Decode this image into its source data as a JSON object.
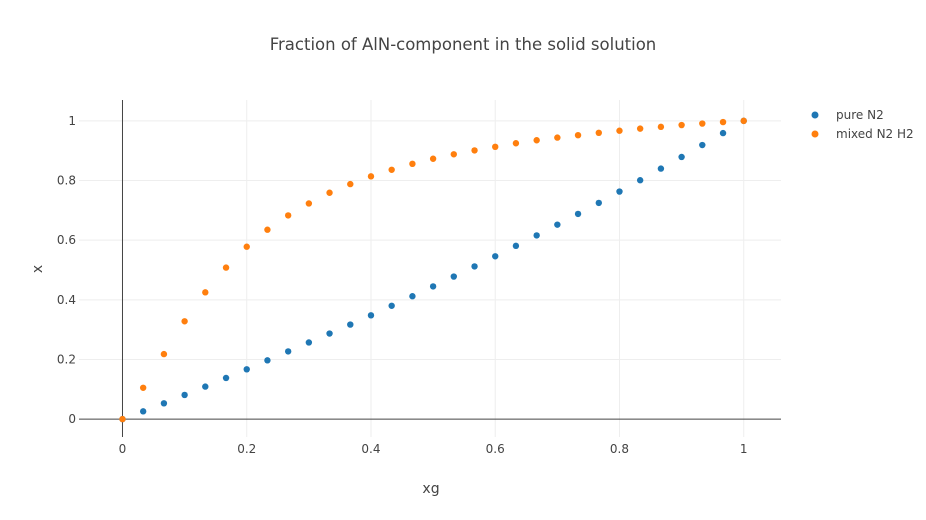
{
  "chart_data": {
    "type": "scatter",
    "title": "Fraction of AlN-component in the solid solution",
    "xlabel": "xg",
    "ylabel": "x",
    "xlim": [
      -0.07,
      1.06
    ],
    "ylim": [
      -0.06,
      1.07
    ],
    "xticks": [
      0,
      0.2,
      0.4,
      0.6,
      0.8,
      1
    ],
    "yticks": [
      0,
      0.2,
      0.4,
      0.6,
      0.8,
      1
    ],
    "xtick_labels": [
      "0",
      "0.2",
      "0.4",
      "0.6",
      "0.8",
      "1"
    ],
    "ytick_labels": [
      "0",
      "0.2",
      "0.4",
      "0.6",
      "0.8",
      "1"
    ],
    "grid": true,
    "legend_position": "top-right",
    "series": [
      {
        "name": "pure N2",
        "color": "#1f77b4",
        "x": [
          0,
          0.0333,
          0.0667,
          0.1,
          0.1333,
          0.1667,
          0.2,
          0.2333,
          0.2667,
          0.3,
          0.3333,
          0.3667,
          0.4,
          0.4333,
          0.4667,
          0.5,
          0.5333,
          0.5667,
          0.6,
          0.6333,
          0.6667,
          0.7,
          0.7333,
          0.7667,
          0.8,
          0.8333,
          0.8667,
          0.9,
          0.9333,
          0.9667,
          1
        ],
        "y": [
          0,
          0.026,
          0.053,
          0.081,
          0.109,
          0.138,
          0.167,
          0.197,
          0.227,
          0.257,
          0.287,
          0.317,
          0.348,
          0.38,
          0.412,
          0.445,
          0.478,
          0.512,
          0.546,
          0.581,
          0.616,
          0.652,
          0.688,
          0.725,
          0.763,
          0.801,
          0.84,
          0.879,
          0.919,
          0.959,
          1.0
        ]
      },
      {
        "name": "mixed N2 H2",
        "color": "#ff7f0e",
        "x": [
          0,
          0.0333,
          0.0667,
          0.1,
          0.1333,
          0.1667,
          0.2,
          0.2333,
          0.2667,
          0.3,
          0.3333,
          0.3667,
          0.4,
          0.4333,
          0.4667,
          0.5,
          0.5333,
          0.5667,
          0.6,
          0.6333,
          0.6667,
          0.7,
          0.7333,
          0.7667,
          0.8,
          0.8333,
          0.8667,
          0.9,
          0.9333,
          0.9667,
          1
        ],
        "y": [
          0,
          0.105,
          0.218,
          0.328,
          0.425,
          0.508,
          0.578,
          0.635,
          0.683,
          0.723,
          0.759,
          0.788,
          0.814,
          0.836,
          0.856,
          0.873,
          0.888,
          0.901,
          0.913,
          0.925,
          0.935,
          0.944,
          0.952,
          0.96,
          0.967,
          0.974,
          0.98,
          0.986,
          0.991,
          0.996,
          1.0
        ]
      }
    ]
  }
}
